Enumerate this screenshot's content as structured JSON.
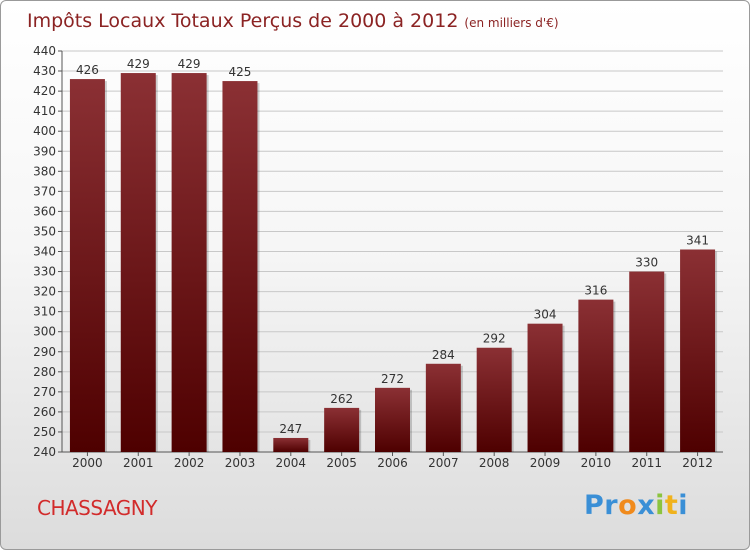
{
  "header": {
    "title": "Impôts Locaux Totaux Perçus de 2000 à 2012",
    "unit": "(en milliers d'€)"
  },
  "commune": "CHASSAGNY",
  "brand": {
    "logo_text": "Proxiti",
    "letters": [
      "P",
      "r",
      "o",
      "x",
      "i",
      "t",
      "i"
    ],
    "letter_colors": [
      "#3a8fd6",
      "#3a8fd6",
      "#f08a1c",
      "#3a8fd6",
      "#8cc43f",
      "#f0b21c",
      "#3a8fd6"
    ]
  },
  "colors": {
    "bar_top": "#8b3034",
    "bar_bottom": "#4e0000",
    "title": "#8b2323",
    "commune": "#d22b2b"
  },
  "chart_data": {
    "type": "bar",
    "title": "Impôts Locaux Totaux Perçus de 2000 à 2012",
    "ylabel": "(en milliers d'€)",
    "xlabel": "",
    "categories": [
      "2000",
      "2001",
      "2002",
      "2003",
      "2004",
      "2005",
      "2006",
      "2007",
      "2008",
      "2009",
      "2010",
      "2011",
      "2012"
    ],
    "values": [
      426,
      429,
      429,
      425,
      247,
      262,
      272,
      284,
      292,
      304,
      316,
      330,
      341
    ],
    "ylim": [
      240,
      440
    ],
    "yticks": [
      240,
      250,
      260,
      270,
      280,
      290,
      300,
      310,
      320,
      330,
      340,
      350,
      360,
      370,
      380,
      390,
      400,
      410,
      420,
      430,
      440
    ],
    "grid": true
  }
}
